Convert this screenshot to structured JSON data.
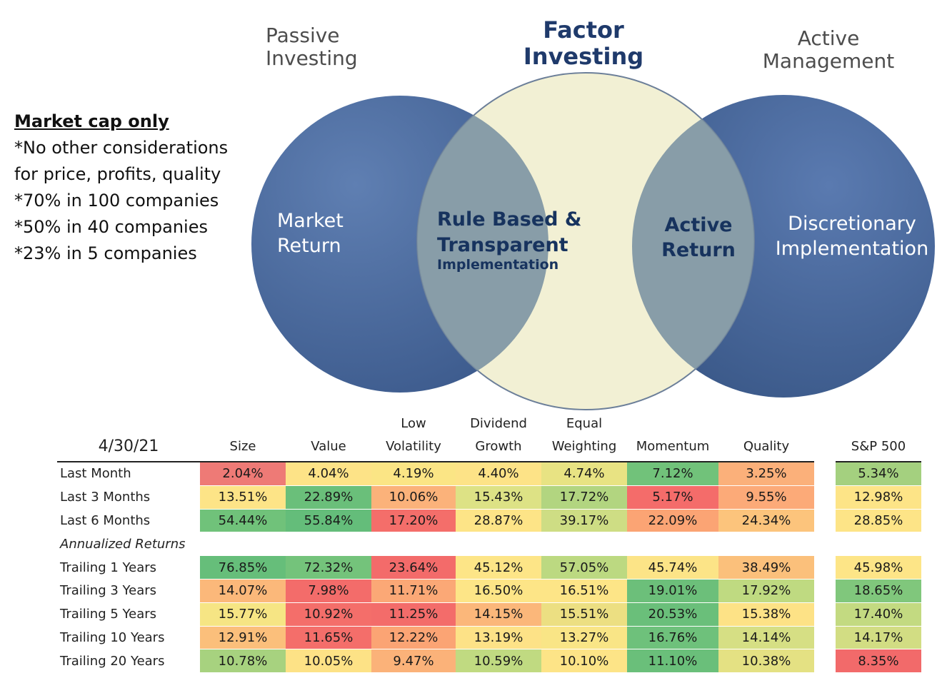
{
  "venn": {
    "left_heading": [
      "Passive",
      "Investing"
    ],
    "center_heading": [
      "Factor",
      "Investing"
    ],
    "right_heading": [
      "Active",
      "Management"
    ],
    "left_circle_label": [
      "Market",
      "Return"
    ],
    "center_label": [
      "Rule Based &",
      "Transparent"
    ],
    "center_sublabel": "Implementation",
    "right_overlap_label": [
      "Active",
      "Return"
    ],
    "right_circle_label": [
      "Discretionary",
      "Implementation"
    ],
    "colors": {
      "outer_circle": "#4a6a9c",
      "center_circle": "#f2f0d4",
      "overlap": "#8aa0a8"
    }
  },
  "note": {
    "title": "Market cap only",
    "lines": [
      "*No other considerations",
      "for price, profits, quality",
      "*70% in 100 companies",
      "*50% in 40 companies",
      "*23% in 5 companies"
    ]
  },
  "table": {
    "date": "4/30/21",
    "columns": [
      [
        "",
        "Size"
      ],
      [
        "",
        "Value"
      ],
      [
        "Low",
        "Volatility"
      ],
      [
        "Dividend",
        "Growth"
      ],
      [
        "Equal",
        "Weighting"
      ],
      [
        "",
        "Momentum"
      ],
      [
        "",
        "Quality"
      ]
    ],
    "benchmark": "S&P 500",
    "section_label": "Annualized Returns",
    "rows_recent": [
      {
        "label": "Last Month",
        "values": [
          "2.04%",
          "4.04%",
          "4.19%",
          "4.40%",
          "4.74%",
          "7.12%",
          "3.25%"
        ],
        "bench": "5.34%",
        "colors": [
          "#ee7a76",
          "#fde387",
          "#fbe585",
          "#fde387",
          "#e8e383",
          "#71c27a",
          "#fbb07a"
        ],
        "bench_color": "#a4d07f"
      },
      {
        "label": "Last 3 Months",
        "values": [
          "13.51%",
          "22.89%",
          "10.06%",
          "15.43%",
          "17.72%",
          "5.17%",
          "9.55%"
        ],
        "bench": "12.98%",
        "colors": [
          "#fde487",
          "#6abf7a",
          "#fbb27a",
          "#dde285",
          "#b2d580",
          "#f46c6a",
          "#fcaa78"
        ],
        "bench_color": "#fde487"
      },
      {
        "label": "Last 6 Months",
        "values": [
          "54.44%",
          "55.84%",
          "17.20%",
          "28.87%",
          "39.17%",
          "22.09%",
          "24.34%"
        ],
        "bench": "28.85%",
        "colors": [
          "#70c27a",
          "#64bd7a",
          "#f46e6a",
          "#fde487",
          "#cedd84",
          "#fba474",
          "#fcc47c"
        ],
        "bench_color": "#fde487"
      }
    ],
    "rows_annualized": [
      {
        "label": "Trailing 1 Years",
        "values": [
          "76.85%",
          "72.32%",
          "23.64%",
          "45.12%",
          "57.05%",
          "45.74%",
          "38.49%"
        ],
        "bench": "45.98%",
        "colors": [
          "#66be7a",
          "#74c37b",
          "#f36b6a",
          "#fde587",
          "#bcd981",
          "#fce487",
          "#fbc07b"
        ],
        "bench_color": "#fde587"
      },
      {
        "label": "Trailing 3 Years",
        "values": [
          "14.07%",
          "7.98%",
          "11.71%",
          "16.50%",
          "16.51%",
          "19.01%",
          "17.92%"
        ],
        "bench": "18.65%",
        "colors": [
          "#fbb87a",
          "#f36c6a",
          "#fba876",
          "#fde587",
          "#fde587",
          "#6cbf7a",
          "#bfda81"
        ],
        "bench_color": "#80c77c"
      },
      {
        "label": "Trailing 5 Years",
        "values": [
          "15.77%",
          "10.92%",
          "11.25%",
          "14.15%",
          "15.51%",
          "20.53%",
          "15.38%"
        ],
        "bench": "17.40%",
        "colors": [
          "#f6e584",
          "#f46e6a",
          "#f36c6a",
          "#fbb77a",
          "#ecdf82",
          "#6abf7a",
          "#fde286"
        ],
        "bench_color": "#c3da81"
      },
      {
        "label": "Trailing 10 Years",
        "values": [
          "12.91%",
          "11.65%",
          "12.22%",
          "13.19%",
          "13.27%",
          "16.76%",
          "14.14%"
        ],
        "bench": "14.17%",
        "colors": [
          "#fbbf7b",
          "#f46e6a",
          "#fba474",
          "#fde287",
          "#f9e586",
          "#6ec17b",
          "#d6df84"
        ],
        "bench_color": "#d2dd83"
      },
      {
        "label": "Trailing 20 Years",
        "values": [
          "10.78%",
          "10.05%",
          "9.47%",
          "10.59%",
          "10.10%",
          "11.10%",
          "10.38%"
        ],
        "bench": "8.35%",
        "colors": [
          "#a7d27f",
          "#fde286",
          "#fbb279",
          "#c0da81",
          "#fde487",
          "#6abf7a",
          "#e4e183"
        ],
        "bench_color": "#f26a6a"
      }
    ]
  }
}
